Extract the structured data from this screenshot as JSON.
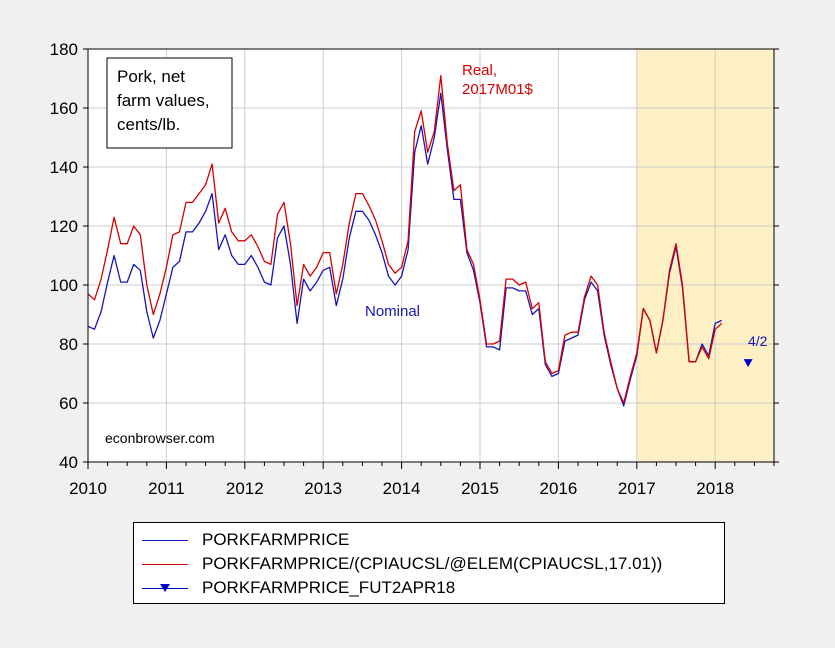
{
  "colors": {
    "nominal": "#1515b8",
    "real": "#d40000",
    "shade": "#fcf0c4",
    "grid": "#cccccc"
  },
  "annotations": {
    "box": [
      "Pork, net",
      "farm values,",
      "cents/lb."
    ],
    "real_label": [
      "Real,",
      "2017M01$"
    ],
    "nominal_label": "Nominal",
    "source": "econbrowser.com",
    "futures_label": "4/2"
  },
  "legend": [
    {
      "label": "PORKFARMPRICE",
      "style": "line",
      "color": "#1515b8"
    },
    {
      "label": "PORKFARMPRICE/(CPIAUCSL/@ELEM(CPIAUCSL,17.01))",
      "style": "line",
      "color": "#d40000"
    },
    {
      "label": "PORKFARMPRICE_FUT2APR18",
      "style": "marker",
      "color": "#0000cc"
    }
  ],
  "chart_data": {
    "type": "line",
    "ylim": [
      40,
      180
    ],
    "yticks": [
      40,
      60,
      80,
      100,
      120,
      140,
      160,
      180
    ],
    "xlim": [
      2010,
      2018.75
    ],
    "xticks": [
      "2010",
      "2011",
      "2012",
      "2013",
      "2014",
      "2015",
      "2016",
      "2017",
      "2018"
    ],
    "shaded_region": [
      2017,
      2018.75
    ],
    "grid": true,
    "series": [
      {
        "name": "PORKFARMPRICE",
        "color": "#1515b8",
        "x": [
          2010.0,
          2010.083,
          2010.167,
          2010.25,
          2010.333,
          2010.417,
          2010.5,
          2010.583,
          2010.667,
          2010.75,
          2010.833,
          2010.917,
          2011.0,
          2011.083,
          2011.167,
          2011.25,
          2011.333,
          2011.417,
          2011.5,
          2011.583,
          2011.667,
          2011.75,
          2011.833,
          2011.917,
          2012.0,
          2012.083,
          2012.167,
          2012.25,
          2012.333,
          2012.417,
          2012.5,
          2012.583,
          2012.667,
          2012.75,
          2012.833,
          2012.917,
          2013.0,
          2013.083,
          2013.167,
          2013.25,
          2013.333,
          2013.417,
          2013.5,
          2013.583,
          2013.667,
          2013.75,
          2013.833,
          2013.917,
          2014.0,
          2014.083,
          2014.167,
          2014.25,
          2014.333,
          2014.417,
          2014.5,
          2014.583,
          2014.667,
          2014.75,
          2014.833,
          2014.917,
          2015.0,
          2015.083,
          2015.167,
          2015.25,
          2015.333,
          2015.417,
          2015.5,
          2015.583,
          2015.667,
          2015.75,
          2015.833,
          2015.917,
          2016.0,
          2016.083,
          2016.167,
          2016.25,
          2016.333,
          2016.417,
          2016.5,
          2016.583,
          2016.667,
          2016.75,
          2016.833,
          2016.917,
          2017.0,
          2017.083,
          2017.167,
          2017.25,
          2017.333,
          2017.417,
          2017.5,
          2017.583,
          2017.667,
          2017.75,
          2017.833,
          2017.917,
          2018.0,
          2018.083
        ],
        "y": [
          86,
          85,
          91,
          101,
          110,
          101,
          101,
          107,
          105,
          91,
          82,
          88,
          97,
          106,
          108,
          118,
          118,
          121,
          125,
          131,
          112,
          117,
          110,
          107,
          107,
          110,
          106,
          101,
          100,
          116,
          120,
          107,
          87,
          102,
          98,
          101,
          105,
          106,
          93,
          102,
          116,
          125,
          125,
          122,
          117,
          111,
          103,
          100,
          103,
          112,
          145,
          154,
          141,
          150,
          165,
          146,
          129,
          129,
          111,
          105,
          94,
          79,
          79,
          78,
          99,
          99,
          98,
          98,
          90,
          92,
          73,
          69,
          70,
          81,
          82,
          83,
          95,
          101,
          98,
          83,
          73,
          65,
          59,
          68,
          76,
          92,
          88,
          77,
          88,
          104,
          113,
          99,
          74,
          74,
          80,
          76,
          87,
          88
        ]
      },
      {
        "name": "PORKFARMPRICE/(CPIAUCSL/@ELEM(CPIAUCSL,17.01))",
        "color": "#d40000",
        "x": [
          2010.0,
          2010.083,
          2010.167,
          2010.25,
          2010.333,
          2010.417,
          2010.5,
          2010.583,
          2010.667,
          2010.75,
          2010.833,
          2010.917,
          2011.0,
          2011.083,
          2011.167,
          2011.25,
          2011.333,
          2011.417,
          2011.5,
          2011.583,
          2011.667,
          2011.75,
          2011.833,
          2011.917,
          2012.0,
          2012.083,
          2012.167,
          2012.25,
          2012.333,
          2012.417,
          2012.5,
          2012.583,
          2012.667,
          2012.75,
          2012.833,
          2012.917,
          2013.0,
          2013.083,
          2013.167,
          2013.25,
          2013.333,
          2013.417,
          2013.5,
          2013.583,
          2013.667,
          2013.75,
          2013.833,
          2013.917,
          2014.0,
          2014.083,
          2014.167,
          2014.25,
          2014.333,
          2014.417,
          2014.5,
          2014.583,
          2014.667,
          2014.75,
          2014.833,
          2014.917,
          2015.0,
          2015.083,
          2015.167,
          2015.25,
          2015.333,
          2015.417,
          2015.5,
          2015.583,
          2015.667,
          2015.75,
          2015.833,
          2015.917,
          2016.0,
          2016.083,
          2016.167,
          2016.25,
          2016.333,
          2016.417,
          2016.5,
          2016.583,
          2016.667,
          2016.75,
          2016.833,
          2016.917,
          2017.0,
          2017.083,
          2017.167,
          2017.25,
          2017.333,
          2017.417,
          2017.5,
          2017.583,
          2017.667,
          2017.75,
          2017.833,
          2017.917,
          2018.0,
          2018.083
        ],
        "y": [
          97,
          95,
          102,
          112,
          123,
          114,
          114,
          120,
          117,
          100,
          90,
          97,
          106,
          117,
          118,
          128,
          128,
          131,
          134,
          141,
          121,
          126,
          118,
          115,
          115,
          117,
          113,
          108,
          107,
          124,
          128,
          114,
          93,
          107,
          103,
          106,
          111,
          111,
          97,
          107,
          121,
          131,
          131,
          127,
          122,
          115,
          107,
          104,
          106,
          115,
          152,
          159,
          145,
          152,
          171,
          148,
          132,
          134,
          112,
          107,
          95,
          80,
          80,
          81,
          102,
          102,
          100,
          101,
          92,
          94,
          74,
          70,
          71,
          83,
          84,
          84,
          96,
          103,
          100,
          84,
          74,
          65,
          60,
          69,
          77,
          92,
          88,
          77,
          88,
          105,
          114,
          100,
          74,
          74,
          79,
          75,
          85,
          87
        ]
      },
      {
        "name": "PORKFARMPRICE_FUT2APR18",
        "color": "#0000cc",
        "marker": "triangle-down",
        "x": [
          2018.42
        ],
        "y": [
          73.5
        ]
      }
    ]
  }
}
